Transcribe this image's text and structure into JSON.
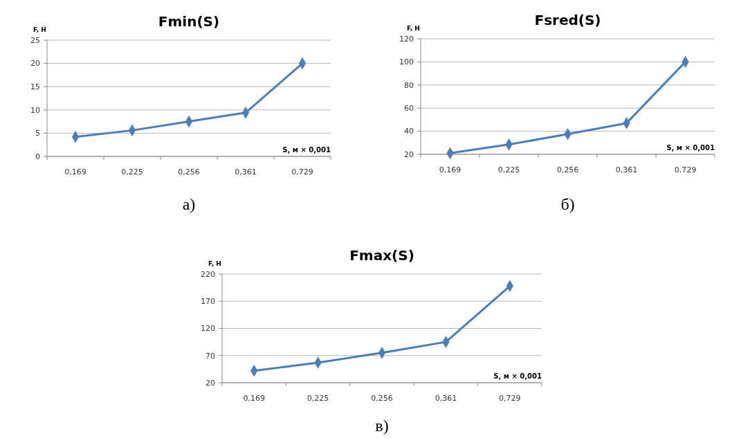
{
  "chart_data": [
    {
      "type": "line",
      "title": "Fmin(S)",
      "xlabel": "S, м × 0,001",
      "ylabel": "F, Н",
      "categories": [
        "0,169",
        "0,225",
        "0,256",
        "0,361",
        "0,729"
      ],
      "series": [
        {
          "color": "#4a7ebb",
          "values": [
            4.2,
            5.6,
            7.5,
            9.4,
            20
          ]
        }
      ],
      "ylim": [
        0,
        25
      ],
      "yticks": [
        0,
        5,
        10,
        15,
        20,
        25
      ],
      "grid": "y",
      "marker": "diamond",
      "line_style": "solid",
      "annotations": [
        "а)"
      ]
    },
    {
      "type": "line",
      "title": "Fsred(S)",
      "xlabel": "S, м × 0,001",
      "ylabel": "F, Н",
      "categories": [
        "0,169",
        "0,225",
        "0,256",
        "0,361",
        "0,729"
      ],
      "series": [
        {
          "color": "#4a7ebb",
          "values": [
            21,
            28.5,
            37.5,
            47,
            100
          ]
        }
      ],
      "ylim": [
        20,
        120
      ],
      "yticks": [
        20,
        40,
        60,
        80,
        100,
        120
      ],
      "grid": "y",
      "marker": "diamond",
      "line_style": "solid",
      "annotations": [
        "б)"
      ]
    },
    {
      "type": "line",
      "title": "Fmax(S)",
      "xlabel": "S, м × 0,001",
      "ylabel": "F, Н",
      "categories": [
        "0,169",
        "0,225",
        "0,256",
        "0,361",
        "0,729"
      ],
      "series": [
        {
          "color": "#4a7ebb",
          "values": [
            42,
            57,
            75,
            95,
            198
          ]
        }
      ],
      "ylim": [
        20,
        220
      ],
      "yticks": [
        20,
        70,
        120,
        170,
        220
      ],
      "grid": "y",
      "marker": "diamond",
      "line_style": "solid",
      "annotations": [
        "в)"
      ]
    }
  ]
}
